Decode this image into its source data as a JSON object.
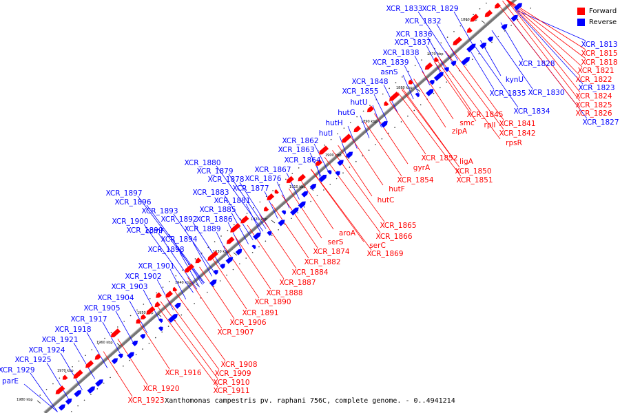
{
  "caption": "Xanthomonas campestris pv. raphani 756C, complete genome. - 0..4941214",
  "legend": [
    {
      "label": "Forward",
      "color": "#ff0000"
    },
    {
      "label": "Reverse",
      "color": "#0000ff"
    }
  ],
  "colors": {
    "forward": "#ff0000",
    "reverse": "#0000ff",
    "backbone": "#777777"
  },
  "ticks": [
    "1860 kbp",
    "1870 kbp",
    "1880 kbp",
    "1890 kbp",
    "1900 kbp",
    "1910 kbp",
    "1920 kbp",
    "1930 kbp",
    "1940 kbp",
    "1950 kbp",
    "1960 kbp",
    "1970 kbp",
    "1980 kbp"
  ],
  "reverse_labels": [
    "XCR_1833",
    "XCR_1829",
    "XCR_1832",
    "XCR_1836",
    "XCR_1837",
    "XCR_1838",
    "XCR_1839",
    "asnS",
    "XCR_1848",
    "XCR_1855",
    "hutU",
    "hutG",
    "hutH",
    "hutI",
    "XCR_1862",
    "XCR_1863",
    "XCR_1864",
    "XCR_1867",
    "XCR_1880",
    "XCR_1879",
    "XCR_1878",
    "XCR_1876",
    "XCR_1877",
    "XCR_1883",
    "XCR_1881",
    "XCR_1885",
    "XCR_1886",
    "XCR_1889",
    "XCR_1897",
    "XCR_1896",
    "XCR_1893",
    "XCR_1892",
    "XCR_1900",
    "ccmF",
    "XCR_1899",
    "XCR_1894",
    "XCR_1898",
    "XCR_1901",
    "XCR_1902",
    "XCR_1903",
    "XCR_1904",
    "XCR_1905",
    "XCR_1917",
    "XCR_1918",
    "XCR_1921",
    "XCR_1924",
    "XCR_1925",
    "XCR_1929",
    "parE",
    "kynU",
    "XCR_1828",
    "XCR_1835",
    "XCR_1830",
    "XCR_1834",
    "XCR_1813",
    "XCR_1823",
    "XCR_1827"
  ],
  "forward_labels": [
    "XCR_1815",
    "XCR_1818",
    "XCR_1821",
    "XCR_1822",
    "XCR_1824",
    "XCR_1825",
    "XCR_1826",
    "XCR_1845",
    "smc",
    "rplI",
    "XCR_1841",
    "zipA",
    "XCR_1842",
    "rpsR",
    "XCR_1852",
    "ligA",
    "gyrA",
    "XCR_1850",
    "XCR_1854",
    "XCR_1851",
    "hutF",
    "hutC",
    "XCR_1865",
    "aroA",
    "XCR_1866",
    "serS",
    "serC",
    "XCR_1874",
    "XCR_1869",
    "XCR_1882",
    "XCR_1884",
    "XCR_1887",
    "XCR_1888",
    "XCR_1890",
    "XCR_1891",
    "XCR_1906",
    "XCR_1907",
    "XCR_1908",
    "XCR_1916",
    "XCR_1909",
    "XCR_1910",
    "XCR_1911",
    "XCR_1920",
    "XCR_1923"
  ]
}
